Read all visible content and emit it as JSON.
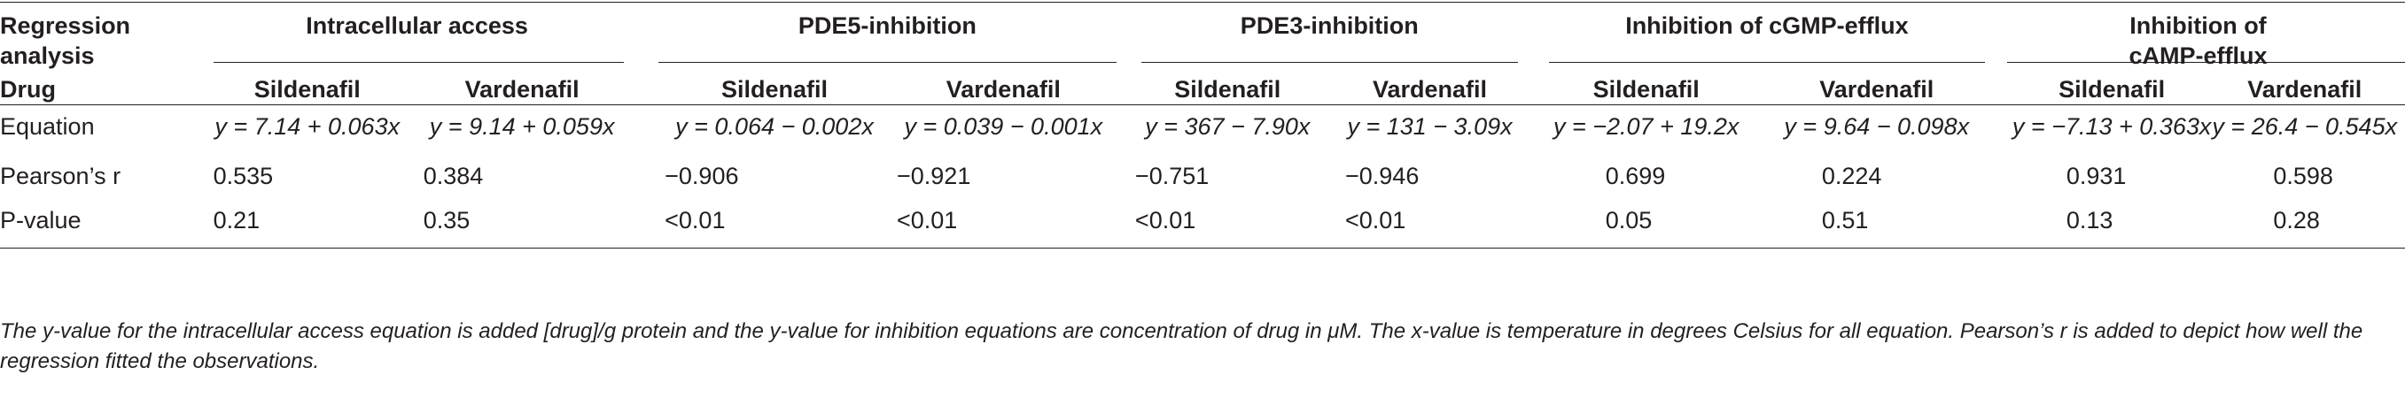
{
  "table": {
    "corner_header_line1": "Regression",
    "corner_header_line2": "analysis",
    "groups": [
      {
        "label": "Intracellular access"
      },
      {
        "label": "PDE5-inhibition"
      },
      {
        "label": "PDE3-inhibition"
      },
      {
        "label": "Inhibition of cGMP-efflux"
      },
      {
        "label": "Inhibition of cAMP-efflux"
      }
    ],
    "drug_row_label": "Drug",
    "drugs": [
      "Sildenafil",
      "Vardenafil",
      "Sildenafil",
      "Vardenafil",
      "Sildenafil",
      "Vardenafil",
      "Sildenafil",
      "Vardenafil",
      "Sildenafil",
      "Vardenafil"
    ],
    "rows": [
      {
        "label": "Equation",
        "values": [
          "y = 7.14 + 0.063x",
          "y = 9.14 + 0.059x",
          "y = 0.064 − 0.002x",
          "y = 0.039 − 0.001x",
          "y = 367 − 7.90x",
          "y = 131 − 3.09x",
          "y = −2.07 + 19.2x",
          "y = 9.64 − 0.098x",
          "y = −7.13 + 0.363x",
          "y = 26.4 − 0.545x"
        ]
      },
      {
        "label": "Pearson’s r",
        "values": [
          "0.535",
          "0.384",
          "−0.906",
          "−0.921",
          "−0.751",
          "−0.946",
          "0.699",
          "0.224",
          "0.931",
          "0.598"
        ]
      },
      {
        "label": "P-value",
        "values": [
          "0.21",
          "0.35",
          "<0.01",
          "<0.01",
          "<0.01",
          "<0.01",
          "0.05",
          "0.51",
          "0.13",
          "0.28"
        ]
      }
    ],
    "footnote": "The y-value for the intracellular access equation is added [drug]/g protein and the y-value for inhibition equations are concentration of drug in μM. The x-value is temperature in degrees Celsius for all equation. Pearson’s r is added to depict how well the regression fitted the observations."
  }
}
